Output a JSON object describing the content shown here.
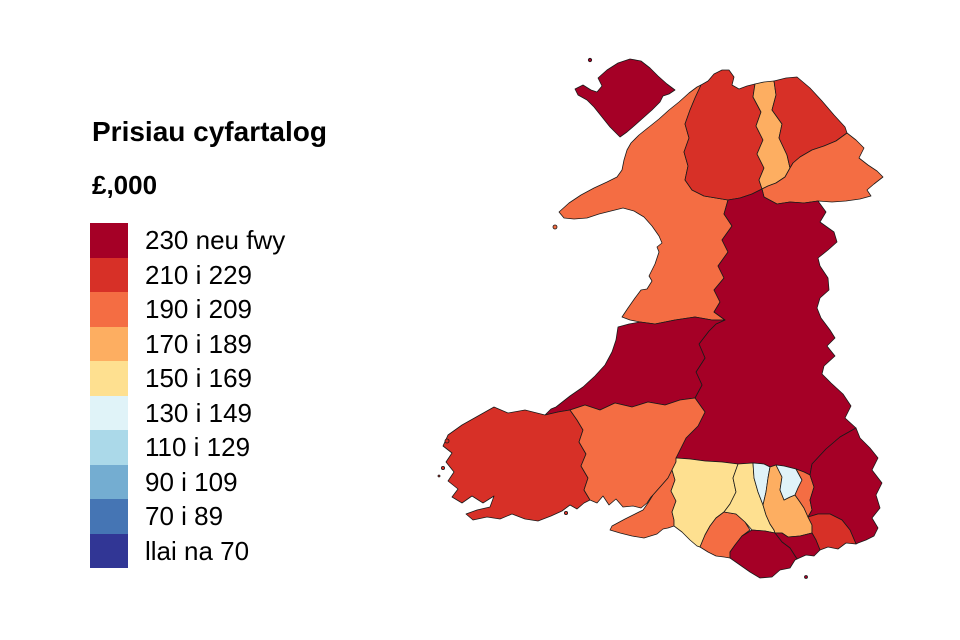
{
  "chart_data": {
    "type": "choropleth",
    "title": "Prisiau cyfartalog",
    "unit_label": "£,000",
    "legend_position": "left",
    "map_subject": "Wales local authorities",
    "bands": [
      {
        "label": "230 neu fwy",
        "color": "#A50026"
      },
      {
        "label": "210 i 229",
        "color": "#D73027"
      },
      {
        "label": "190 i 209",
        "color": "#F46D43"
      },
      {
        "label": "170 i 189",
        "color": "#FDAE61"
      },
      {
        "label": "150 i 169",
        "color": "#FEE090"
      },
      {
        "label": "130 i 149",
        "color": "#E0F3F8"
      },
      {
        "label": "110 i 129",
        "color": "#ABD9E9"
      },
      {
        "label": "90 i 109",
        "color": "#74ADD1"
      },
      {
        "label": "70 i 89",
        "color": "#4575B4"
      },
      {
        "label": "llai na 70",
        "color": "#313695"
      }
    ],
    "regions": [
      {
        "id": "isle-of-anglesey",
        "name": "Isle of Anglesey",
        "band": 0
      },
      {
        "id": "gwynedd",
        "name": "Gwynedd",
        "band": 2
      },
      {
        "id": "conwy",
        "name": "Conwy",
        "band": 1
      },
      {
        "id": "denbighshire",
        "name": "Denbighshire",
        "band": 3
      },
      {
        "id": "flintshire",
        "name": "Flintshire",
        "band": 1
      },
      {
        "id": "wrexham",
        "name": "Wrexham",
        "band": 2
      },
      {
        "id": "powys",
        "name": "Powys",
        "band": 0
      },
      {
        "id": "ceredigion",
        "name": "Ceredigion",
        "band": 0
      },
      {
        "id": "pembrokeshire",
        "name": "Pembrokeshire",
        "band": 1
      },
      {
        "id": "carmarthenshire",
        "name": "Carmarthenshire",
        "band": 2
      },
      {
        "id": "swansea",
        "name": "Swansea",
        "band": 2
      },
      {
        "id": "neath-port-talbot",
        "name": "Neath Port Talbot",
        "band": 4
      },
      {
        "id": "bridgend",
        "name": "Bridgend",
        "band": 2
      },
      {
        "id": "rhondda-cynon-taf",
        "name": "Rhondda Cynon Taf",
        "band": 4
      },
      {
        "id": "merthyr-tydfil",
        "name": "Merthyr Tydfil",
        "band": 5
      },
      {
        "id": "caerphilly",
        "name": "Caerphilly",
        "band": 3
      },
      {
        "id": "blaenau-gwent",
        "name": "Blaenau Gwent",
        "band": 5
      },
      {
        "id": "torfaen",
        "name": "Torfaen",
        "band": 2
      },
      {
        "id": "monmouthshire",
        "name": "Monmouthshire",
        "band": 0
      },
      {
        "id": "newport",
        "name": "Newport",
        "band": 1
      },
      {
        "id": "cardiff",
        "name": "Cardiff",
        "band": 0
      },
      {
        "id": "vale-of-glamorgan",
        "name": "Vale of Glamorgan",
        "band": 0
      }
    ]
  },
  "style": {
    "background": "#ffffff",
    "border_color": "#1a1a1a",
    "text_color": "#000000"
  }
}
